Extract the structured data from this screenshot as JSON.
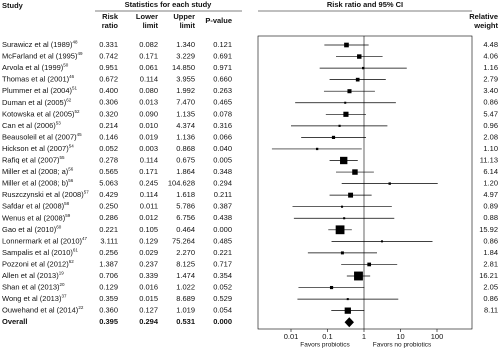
{
  "chart_data": {
    "type": "forest",
    "headers": {
      "study": "Study",
      "stats": "Statistics for each study",
      "rr": [
        "Risk",
        "ratio"
      ],
      "lower": [
        "Lower",
        "limit"
      ],
      "upper": [
        "Upper",
        "limit"
      ],
      "p": "P-value",
      "plot": "Risk ratio and 95% CI",
      "weight": [
        "Relative",
        "weight"
      ]
    },
    "studies": [
      {
        "name": "Surawicz et al (1989)",
        "ref": "48",
        "rr": 0.331,
        "lower": 0.082,
        "upper": {
          "value": 1.34,
          "label": "1.340"
        },
        "p": 0.121,
        "weight": 4.48
      },
      {
        "name": "McFarland et al (1995)",
        "ref": "49",
        "rr": 0.742,
        "lower": 0.171,
        "upper": 3.229,
        "p": 0.691,
        "weight": 4.06
      },
      {
        "name": "Arvola et al (1999)",
        "ref": "50",
        "rr": 0.951,
        "lower": 0.061,
        "upper": {
          "value": 14.85,
          "label": "14.850"
        },
        "p": 0.971,
        "weight": 1.16
      },
      {
        "name": "Thomas et al (2001)",
        "ref": "46",
        "rr": 0.672,
        "lower": 0.114,
        "upper": 3.955,
        "p": {
          "value": 0.66,
          "label": "0.660"
        },
        "weight": 2.79
      },
      {
        "name": "Plummer et al (2004)",
        "ref": "51",
        "rr": {
          "value": 0.4,
          "label": "0.400"
        },
        "lower": {
          "value": 0.08,
          "label": "0.080"
        },
        "upper": 1.992,
        "p": 0.263,
        "weight": {
          "value": 3.4,
          "label": "3.40"
        }
      },
      {
        "name": "Duman et al (2005)",
        "ref": "62",
        "rr": 0.306,
        "lower": 0.013,
        "upper": {
          "value": 7.47,
          "label": "7.470"
        },
        "p": 0.465,
        "weight": 0.86
      },
      {
        "name": "Kotowska et al (2005)",
        "ref": "52",
        "rr": {
          "value": 0.32,
          "label": "0.320"
        },
        "lower": {
          "value": 0.09,
          "label": "0.090"
        },
        "upper": 1.135,
        "p": 0.078,
        "weight": 5.47
      },
      {
        "name": "Can et al (2006)",
        "ref": "53",
        "rr": 0.214,
        "lower": {
          "value": 0.01,
          "label": "0.010"
        },
        "upper": 4.374,
        "p": 0.316,
        "weight": 0.96
      },
      {
        "name": "Beausoleil et al (2007)",
        "ref": "45",
        "rr": 0.146,
        "lower": 0.019,
        "upper": 1.136,
        "p": 0.066,
        "weight": 2.08
      },
      {
        "name": "Hickson et al (2007)",
        "ref": "54",
        "rr": 0.052,
        "lower": 0.003,
        "upper": 0.868,
        "p": {
          "value": 0.04,
          "label": "0.040"
        },
        "weight": {
          "value": 1.1,
          "label": "1.10"
        }
      },
      {
        "name": "Rafiq et al (2007)",
        "ref": "55",
        "rr": 0.278,
        "lower": 0.114,
        "upper": 0.675,
        "p": 0.005,
        "weight": 11.13
      },
      {
        "name": "Miller et al (2008; a)",
        "ref": "56",
        "rr": 0.565,
        "lower": 0.171,
        "upper": 1.864,
        "p": 0.348,
        "weight": 6.14
      },
      {
        "name": "Miller et al (2008; b)",
        "ref": "56",
        "rr": 5.063,
        "lower": 0.245,
        "upper": 104.628,
        "p": 0.294,
        "weight": {
          "value": 1.2,
          "label": "1.20"
        }
      },
      {
        "name": "Ruszczynski et al (2008)",
        "ref": "57",
        "rr": 0.429,
        "lower": 0.114,
        "upper": 1.618,
        "p": 0.211,
        "weight": 4.97
      },
      {
        "name": "Safdar et al (2008)",
        "ref": "58",
        "rr": {
          "value": 0.25,
          "label": "0.250"
        },
        "lower": 0.011,
        "upper": 5.786,
        "p": 0.387,
        "weight": 0.89
      },
      {
        "name": "Wenus et al (2008)",
        "ref": "59",
        "rr": 0.286,
        "lower": 0.012,
        "upper": 6.756,
        "p": 0.438,
        "weight": 0.88
      },
      {
        "name": "Gao et al (2010)",
        "ref": "60",
        "rr": 0.221,
        "lower": 0.105,
        "upper": 0.464,
        "p": {
          "value": 0,
          "label": "0.000"
        },
        "weight": 15.92
      },
      {
        "name": "Lonnermark et al (2010)",
        "ref": "47",
        "rr": 3.111,
        "lower": 0.129,
        "upper": 75.264,
        "p": 0.485,
        "weight": 0.86
      },
      {
        "name": "Sampalis et al (2010)",
        "ref": "61",
        "rr": 0.256,
        "lower": 0.029,
        "upper": {
          "value": 2.27,
          "label": "2.270"
        },
        "p": 0.221,
        "weight": 1.84
      },
      {
        "name": "Pozzoni et al (2012)",
        "ref": "62",
        "rr": 1.387,
        "lower": 0.237,
        "upper": 8.125,
        "p": 0.717,
        "weight": 2.81
      },
      {
        "name": "Allen et al (2013)",
        "ref": "19",
        "rr": 0.706,
        "lower": 0.339,
        "upper": 1.474,
        "p": 0.354,
        "weight": 16.21
      },
      {
        "name": "Shan et al (2013)",
        "ref": "20",
        "rr": 0.129,
        "lower": 0.016,
        "upper": 1.022,
        "p": 0.052,
        "weight": 2.05
      },
      {
        "name": "Wong et al (2013)",
        "ref": "37",
        "rr": 0.359,
        "lower": 0.015,
        "upper": 8.689,
        "p": 0.529,
        "weight": 0.86
      },
      {
        "name": "Ouwehand et al (2014)",
        "ref": "22",
        "rr": {
          "value": 0.36,
          "label": "0.360"
        },
        "lower": 0.127,
        "upper": 1.019,
        "p": 0.054,
        "weight": 8.11
      }
    ],
    "overall": {
      "name": "Overall",
      "rr": 0.395,
      "lower": 0.294,
      "upper": 0.531,
      "p": {
        "value": 0,
        "label": "0.000"
      }
    },
    "x_scale": "log",
    "xlim": [
      0.01,
      100
    ],
    "xticks": [
      0.01,
      0.1,
      1,
      10,
      100
    ],
    "left_label": "Favors probiotics",
    "right_label": "Favors no probiotics",
    "color": "#000000"
  }
}
